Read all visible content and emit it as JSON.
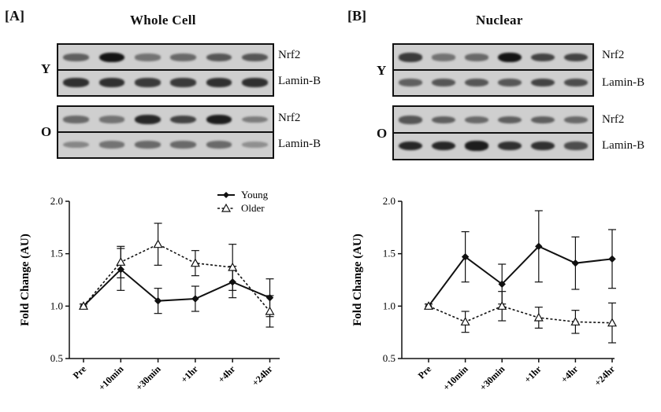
{
  "panels": [
    {
      "letter": "[A]",
      "title": "Whole Cell",
      "groups": [
        {
          "label": "Y",
          "bands": [
            {
              "name": "Nrf2",
              "intensity": [
                0.55,
                0.95,
                0.45,
                0.5,
                0.6,
                0.6
              ]
            },
            {
              "name": "Lamin-B",
              "intensity": [
                0.8,
                0.8,
                0.75,
                0.75,
                0.8,
                0.8
              ]
            }
          ]
        },
        {
          "label": "O",
          "bands": [
            {
              "name": "Nrf2",
              "intensity": [
                0.5,
                0.45,
                0.85,
                0.7,
                0.9,
                0.4
              ]
            },
            {
              "name": "Lamin-B",
              "intensity": [
                0.35,
                0.45,
                0.5,
                0.5,
                0.5,
                0.3
              ]
            }
          ]
        }
      ]
    },
    {
      "letter": "[B]",
      "title": "Nuclear",
      "groups": [
        {
          "label": "Y",
          "bands": [
            {
              "name": "Nrf2",
              "intensity": [
                0.75,
                0.45,
                0.5,
                0.95,
                0.7,
                0.7
              ]
            },
            {
              "name": "Lamin-B",
              "intensity": [
                0.55,
                0.6,
                0.6,
                0.6,
                0.7,
                0.65
              ]
            }
          ]
        },
        {
          "label": "O",
          "bands": [
            {
              "name": "Nrf2",
              "intensity": [
                0.6,
                0.55,
                0.5,
                0.55,
                0.55,
                0.5
              ]
            },
            {
              "name": "Lamin-B",
              "intensity": [
                0.85,
                0.85,
                0.9,
                0.8,
                0.8,
                0.65
              ]
            }
          ]
        }
      ]
    }
  ],
  "chart_data": [
    {
      "type": "line",
      "ylabel": "Fold Change (AU)",
      "xlabel": "",
      "categories": [
        "Pre",
        "+10min",
        "+30min",
        "+1hr",
        "+4hr",
        "+24hr"
      ],
      "ylim": [
        0.5,
        2.0
      ],
      "yticks": [
        "0.5",
        "1.0",
        "1.5",
        "2.0"
      ],
      "legend": "top-right",
      "series": [
        {
          "name": "Young",
          "style": "solid",
          "marker": "filled-diamond",
          "values": [
            1.0,
            1.35,
            1.05,
            1.07,
            1.23,
            1.08
          ],
          "errors": [
            0.02,
            0.2,
            0.12,
            0.12,
            0.15,
            0.18
          ]
        },
        {
          "name": "Older",
          "style": "dotted",
          "marker": "open-triangle",
          "values": [
            1.0,
            1.42,
            1.59,
            1.41,
            1.37,
            0.95
          ],
          "errors": [
            0.02,
            0.15,
            0.2,
            0.12,
            0.22,
            0.15
          ]
        }
      ]
    },
    {
      "type": "line",
      "ylabel": "Fold Change (AU)",
      "xlabel": "",
      "categories": [
        "Pre",
        "+10min",
        "+30min",
        "+1hr",
        "+4hr",
        "+24hr"
      ],
      "ylim": [
        0.5,
        2.0
      ],
      "yticks": [
        "0.5",
        "1.0",
        "1.5",
        "2.0"
      ],
      "series": [
        {
          "name": "",
          "style": "solid",
          "marker": "filled-diamond",
          "values": [
            1.0,
            1.47,
            1.21,
            1.57,
            1.41,
            1.45
          ],
          "errors": [
            0.02,
            0.24,
            0.19,
            0.34,
            0.25,
            0.28
          ]
        },
        {
          "name": "",
          "style": "dotted",
          "marker": "open-triangle",
          "values": [
            1.0,
            0.85,
            1.0,
            0.89,
            0.85,
            0.84
          ],
          "errors": [
            0.02,
            0.1,
            0.14,
            0.1,
            0.11,
            0.19
          ]
        }
      ]
    }
  ]
}
